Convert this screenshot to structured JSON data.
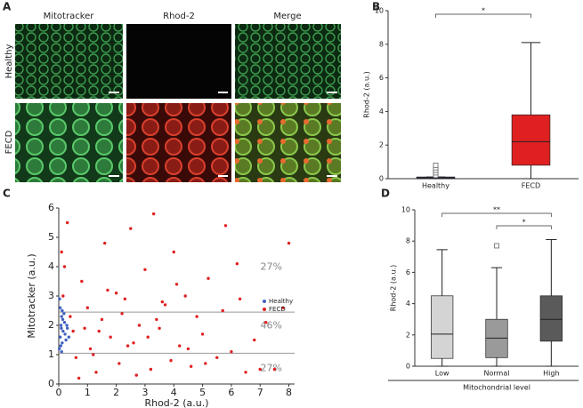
{
  "figure": {
    "panel_labels": [
      "A",
      "B",
      "C",
      "D"
    ],
    "image_grid": {
      "columns": [
        "Mitotracker",
        "Rhod-2",
        "Merge"
      ],
      "rows": [
        "Healthy",
        "FECD"
      ]
    }
  },
  "chart_data": [
    {
      "type": "box",
      "ylabel": "Rhod-2 (a.u.)",
      "categories": [
        "Healthy",
        "FECD"
      ],
      "colors": [
        "#3050c0",
        "#e02020"
      ],
      "boxes": [
        {
          "min": 0,
          "q1": 0,
          "median": 0.05,
          "q3": 0.1,
          "max": 0.1,
          "outliers": [
            0.2,
            0.35,
            0.5,
            0.65,
            0.8
          ]
        },
        {
          "min": 0,
          "q1": 0.8,
          "median": 2.2,
          "q3": 3.8,
          "max": 8.1,
          "outliers": []
        }
      ],
      "ylim": [
        0,
        10
      ],
      "yticks": [
        0,
        2,
        4,
        6,
        8,
        10
      ],
      "significance": [
        {
          "from": 0,
          "to": 1,
          "label": "*"
        }
      ]
    },
    {
      "type": "scatter",
      "xlabel": "Rhod-2 (a.u.)",
      "ylabel": "Mitotracker (a.u.)",
      "xlim": [
        0,
        8.2
      ],
      "xticks": [
        0,
        1,
        2,
        3,
        4,
        5,
        6,
        7,
        8
      ],
      "ylim": [
        0,
        6
      ],
      "yticks": [
        0,
        1,
        2,
        3,
        4,
        5,
        6
      ],
      "hlines": [
        2.45,
        1.05
      ],
      "annotations": [
        "27%",
        "46%",
        "27%"
      ],
      "legend": "right",
      "series": [
        {
          "name": "Healthy",
          "color": "#4060c0",
          "x": [
            0.02,
            0.05,
            0.08,
            0.1,
            0.12,
            0.15,
            0.2,
            0.25,
            0.3,
            0.05,
            0.1,
            0.18,
            0.22,
            0.03,
            0.07,
            0.14,
            0.28,
            0.35,
            0.09,
            0.12
          ],
          "y": [
            1.2,
            1.6,
            2.0,
            2.3,
            1.4,
            1.8,
            2.1,
            1.5,
            1.9,
            2.6,
            1.1,
            2.4,
            1.7,
            2.9,
            1.3,
            2.2,
            2.0,
            1.6,
            1.9,
            2.5
          ]
        },
        {
          "name": "FECD",
          "color": "#e02020",
          "x": [
            0.3,
            0.5,
            0.6,
            0.8,
            1.0,
            1.1,
            1.3,
            1.5,
            1.6,
            1.8,
            2.0,
            2.1,
            2.3,
            2.5,
            2.6,
            2.8,
            3.0,
            3.2,
            3.3,
            3.5,
            3.7,
            3.9,
            4.0,
            4.2,
            4.4,
            4.6,
            4.8,
            5.0,
            5.2,
            5.5,
            5.7,
            6.0,
            6.2,
            6.5,
            6.8,
            7.2,
            7.5,
            7.8,
            8.0,
            0.2,
            0.4,
            0.9,
            1.2,
            1.7,
            2.2,
            2.7,
            3.1,
            3.6,
            4.1,
            4.5,
            5.1,
            5.8,
            6.3,
            7.0,
            1.4,
            2.4,
            3.4,
            0.1,
            0.15,
            0.7
          ],
          "y": [
            5.5,
            1.8,
            0.9,
            3.5,
            2.6,
            1.2,
            0.4,
            2.2,
            4.8,
            1.6,
            3.1,
            0.7,
            2.9,
            5.3,
            1.4,
            2.0,
            3.9,
            0.5,
            5.8,
            1.9,
            2.7,
            0.8,
            4.5,
            1.3,
            3.0,
            0.6,
            2.3,
            1.7,
            3.6,
            0.9,
            2.5,
            1.1,
            4.1,
            0.4,
            1.5,
            2.1,
            0.5,
            2.6,
            4.8,
            4.0,
            2.3,
            1.9,
            1.0,
            3.2,
            2.4,
            0.3,
            1.6,
            2.8,
            3.4,
            1.2,
            0.7,
            5.4,
            2.9,
            0.5,
            1.8,
            1.3,
            2.2,
            4.5,
            3.0,
            0.2
          ]
        }
      ]
    },
    {
      "type": "box",
      "ylabel": "Rhod-2 (a.u.)",
      "xlabel": "Mitochondrial level",
      "categories": [
        "Low",
        "Normal",
        "High"
      ],
      "colors": [
        "#d4d4d4",
        "#9a9a9a",
        "#5a5a5a"
      ],
      "boxes": [
        {
          "min": 0,
          "q1": 0.5,
          "median": 2.05,
          "q3": 4.5,
          "max": 7.45,
          "outliers": []
        },
        {
          "min": 0,
          "q1": 0.55,
          "median": 1.8,
          "q3": 3.0,
          "max": 6.3,
          "outliers": [
            7.7
          ]
        },
        {
          "min": 0,
          "q1": 1.6,
          "median": 3.0,
          "q3": 4.5,
          "max": 8.1,
          "outliers": []
        }
      ],
      "ylim": [
        0,
        10
      ],
      "yticks": [
        0,
        2,
        4,
        6,
        8,
        10
      ],
      "significance": [
        {
          "from": 0,
          "to": 2,
          "label": "**"
        },
        {
          "from": 1,
          "to": 2,
          "label": "*"
        }
      ]
    }
  ]
}
